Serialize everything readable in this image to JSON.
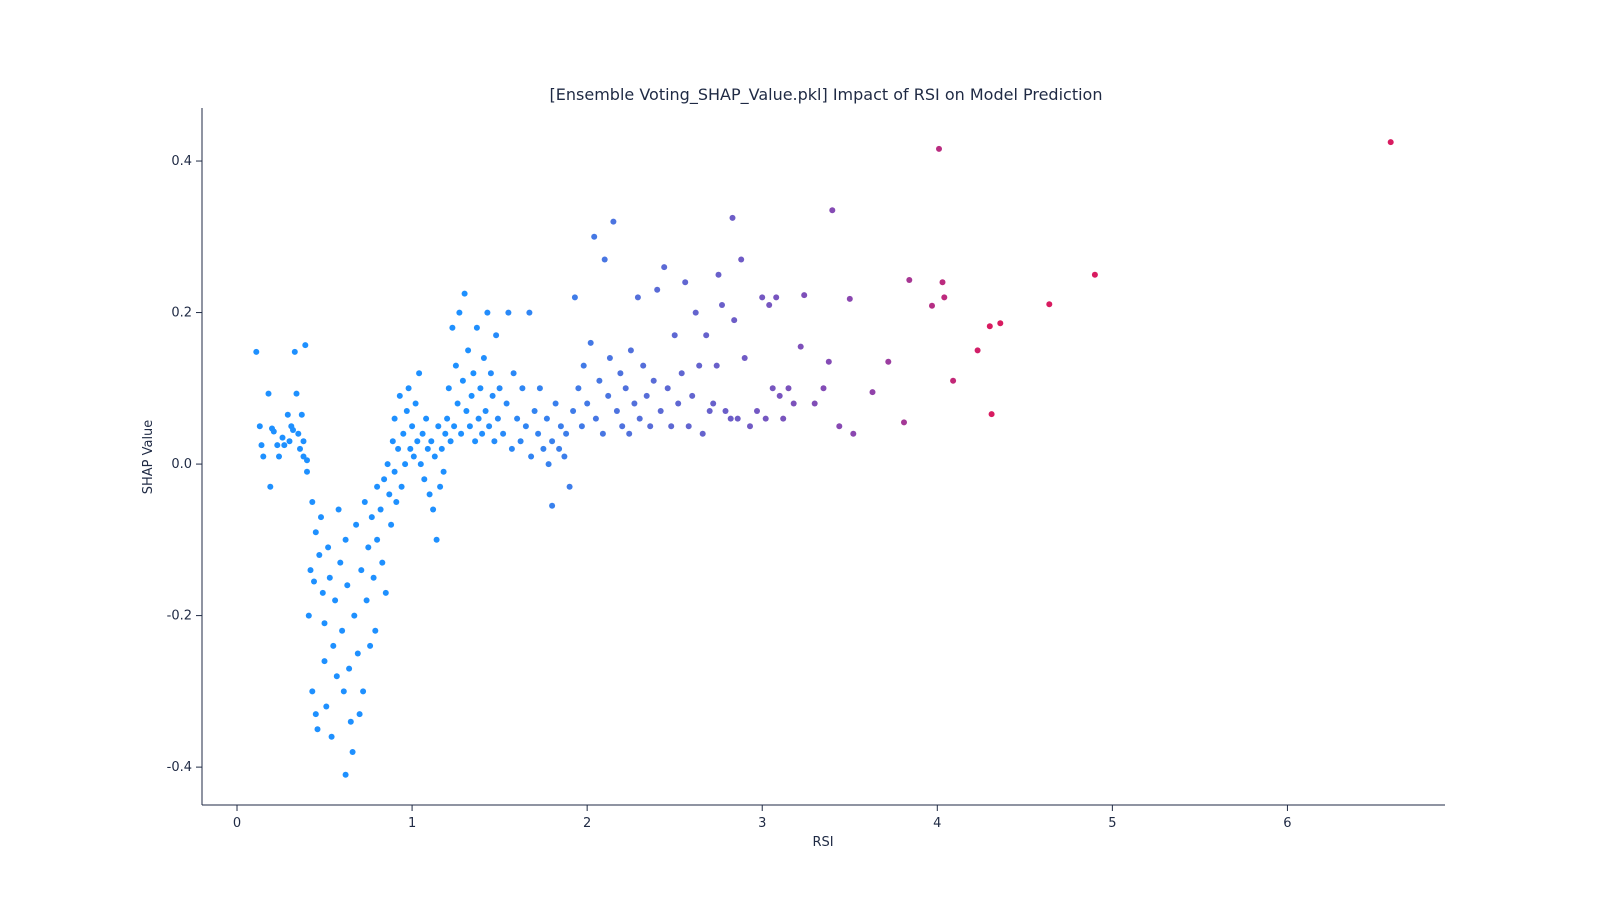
{
  "chart_data": {
    "type": "scatter",
    "title": "[Ensemble Voting_SHAP_Value.pkl] Impact of RSI on Model Prediction",
    "xlabel": "RSI",
    "ylabel": "SHAP Value",
    "xlim": [
      -0.2,
      6.9
    ],
    "ylim": [
      -0.45,
      0.47
    ],
    "xticks": [
      "0",
      "1",
      "2",
      "3",
      "4",
      "5",
      "6"
    ],
    "yticks": [
      "-0.4",
      "-0.2",
      "0.0",
      "0.2",
      "0.4"
    ],
    "grid": false,
    "color_scale": [
      "#1e90ff",
      "#5a6bd6",
      "#8e44ad",
      "#d81b60"
    ],
    "points": [
      [
        0.11,
        0.148
      ],
      [
        0.13,
        0.05
      ],
      [
        0.14,
        0.025
      ],
      [
        0.15,
        0.01
      ],
      [
        0.18,
        0.093
      ],
      [
        0.19,
        -0.03
      ],
      [
        0.2,
        0.047
      ],
      [
        0.21,
        0.043
      ],
      [
        0.23,
        0.025
      ],
      [
        0.24,
        0.01
      ],
      [
        0.26,
        0.035
      ],
      [
        0.27,
        0.025
      ],
      [
        0.29,
        0.065
      ],
      [
        0.3,
        0.03
      ],
      [
        0.31,
        0.05
      ],
      [
        0.32,
        0.045
      ],
      [
        0.33,
        0.148
      ],
      [
        0.34,
        0.093
      ],
      [
        0.35,
        0.04
      ],
      [
        0.36,
        0.02
      ],
      [
        0.37,
        0.065
      ],
      [
        0.38,
        0.03
      ],
      [
        0.38,
        0.01
      ],
      [
        0.39,
        0.157
      ],
      [
        0.4,
        -0.01
      ],
      [
        0.4,
        0.005
      ],
      [
        0.41,
        -0.2
      ],
      [
        0.42,
        -0.14
      ],
      [
        0.43,
        -0.05
      ],
      [
        0.43,
        -0.3
      ],
      [
        0.44,
        -0.155
      ],
      [
        0.45,
        -0.33
      ],
      [
        0.45,
        -0.09
      ],
      [
        0.46,
        -0.35
      ],
      [
        0.47,
        -0.12
      ],
      [
        0.48,
        -0.07
      ],
      [
        0.49,
        -0.17
      ],
      [
        0.5,
        -0.26
      ],
      [
        0.5,
        -0.21
      ],
      [
        0.51,
        -0.32
      ],
      [
        0.52,
        -0.11
      ],
      [
        0.53,
        -0.15
      ],
      [
        0.54,
        -0.36
      ],
      [
        0.55,
        -0.24
      ],
      [
        0.56,
        -0.18
      ],
      [
        0.57,
        -0.28
      ],
      [
        0.58,
        -0.06
      ],
      [
        0.59,
        -0.13
      ],
      [
        0.6,
        -0.22
      ],
      [
        0.61,
        -0.3
      ],
      [
        0.62,
        -0.41
      ],
      [
        0.62,
        -0.1
      ],
      [
        0.63,
        -0.16
      ],
      [
        0.64,
        -0.27
      ],
      [
        0.65,
        -0.34
      ],
      [
        0.66,
        -0.38
      ],
      [
        0.67,
        -0.2
      ],
      [
        0.68,
        -0.08
      ],
      [
        0.69,
        -0.25
      ],
      [
        0.7,
        -0.33
      ],
      [
        0.71,
        -0.14
      ],
      [
        0.72,
        -0.3
      ],
      [
        0.73,
        -0.05
      ],
      [
        0.74,
        -0.18
      ],
      [
        0.75,
        -0.11
      ],
      [
        0.76,
        -0.24
      ],
      [
        0.77,
        -0.07
      ],
      [
        0.78,
        -0.15
      ],
      [
        0.79,
        -0.22
      ],
      [
        0.8,
        -0.03
      ],
      [
        0.8,
        -0.1
      ],
      [
        0.82,
        -0.06
      ],
      [
        0.83,
        -0.13
      ],
      [
        0.84,
        -0.02
      ],
      [
        0.85,
        -0.17
      ],
      [
        0.86,
        0.0
      ],
      [
        0.87,
        -0.04
      ],
      [
        0.88,
        -0.08
      ],
      [
        0.89,
        0.03
      ],
      [
        0.9,
        -0.01
      ],
      [
        0.9,
        0.06
      ],
      [
        0.91,
        -0.05
      ],
      [
        0.92,
        0.02
      ],
      [
        0.93,
        0.09
      ],
      [
        0.94,
        -0.03
      ],
      [
        0.95,
        0.04
      ],
      [
        0.96,
        0.0
      ],
      [
        0.97,
        0.07
      ],
      [
        0.98,
        0.1
      ],
      [
        0.99,
        0.02
      ],
      [
        1.0,
        0.05
      ],
      [
        1.01,
        0.01
      ],
      [
        1.02,
        0.08
      ],
      [
        1.03,
        0.03
      ],
      [
        1.04,
        0.12
      ],
      [
        1.05,
        0.0
      ],
      [
        1.06,
        0.04
      ],
      [
        1.07,
        -0.02
      ],
      [
        1.08,
        0.06
      ],
      [
        1.09,
        0.02
      ],
      [
        1.1,
        -0.04
      ],
      [
        1.11,
        0.03
      ],
      [
        1.12,
        -0.06
      ],
      [
        1.13,
        0.01
      ],
      [
        1.14,
        -0.1
      ],
      [
        1.15,
        0.05
      ],
      [
        1.16,
        -0.03
      ],
      [
        1.17,
        0.02
      ],
      [
        1.18,
        -0.01
      ],
      [
        1.19,
        0.04
      ],
      [
        1.2,
        0.06
      ],
      [
        1.21,
        0.1
      ],
      [
        1.22,
        0.03
      ],
      [
        1.23,
        0.18
      ],
      [
        1.24,
        0.05
      ],
      [
        1.25,
        0.13
      ],
      [
        1.26,
        0.08
      ],
      [
        1.27,
        0.2
      ],
      [
        1.28,
        0.04
      ],
      [
        1.29,
        0.11
      ],
      [
        1.3,
        0.225
      ],
      [
        1.31,
        0.07
      ],
      [
        1.32,
        0.15
      ],
      [
        1.33,
        0.05
      ],
      [
        1.34,
        0.09
      ],
      [
        1.35,
        0.12
      ],
      [
        1.36,
        0.03
      ],
      [
        1.37,
        0.18
      ],
      [
        1.38,
        0.06
      ],
      [
        1.39,
        0.1
      ],
      [
        1.4,
        0.04
      ],
      [
        1.41,
        0.14
      ],
      [
        1.42,
        0.07
      ],
      [
        1.43,
        0.2
      ],
      [
        1.44,
        0.05
      ],
      [
        1.45,
        0.12
      ],
      [
        1.46,
        0.09
      ],
      [
        1.47,
        0.03
      ],
      [
        1.48,
        0.17
      ],
      [
        1.49,
        0.06
      ],
      [
        1.5,
        0.1
      ],
      [
        1.52,
        0.04
      ],
      [
        1.54,
        0.08
      ],
      [
        1.55,
        0.2
      ],
      [
        1.57,
        0.02
      ],
      [
        1.58,
        0.12
      ],
      [
        1.6,
        0.06
      ],
      [
        1.62,
        0.03
      ],
      [
        1.63,
        0.1
      ],
      [
        1.65,
        0.05
      ],
      [
        1.67,
        0.2
      ],
      [
        1.68,
        0.01
      ],
      [
        1.7,
        0.07
      ],
      [
        1.72,
        0.04
      ],
      [
        1.73,
        0.1
      ],
      [
        1.75,
        0.02
      ],
      [
        1.77,
        0.06
      ],
      [
        1.78,
        0.0
      ],
      [
        1.8,
        -0.055
      ],
      [
        1.8,
        0.03
      ],
      [
        1.82,
        0.08
      ],
      [
        1.84,
        0.02
      ],
      [
        1.85,
        0.05
      ],
      [
        1.87,
        0.01
      ],
      [
        1.88,
        0.04
      ],
      [
        1.9,
        -0.03
      ],
      [
        1.92,
        0.07
      ],
      [
        1.93,
        0.22
      ],
      [
        1.95,
        0.1
      ],
      [
        1.97,
        0.05
      ],
      [
        1.98,
        0.13
      ],
      [
        2.0,
        0.08
      ],
      [
        2.02,
        0.16
      ],
      [
        2.04,
        0.3
      ],
      [
        2.05,
        0.06
      ],
      [
        2.07,
        0.11
      ],
      [
        2.09,
        0.04
      ],
      [
        2.1,
        0.27
      ],
      [
        2.12,
        0.09
      ],
      [
        2.13,
        0.14
      ],
      [
        2.15,
        0.32
      ],
      [
        2.17,
        0.07
      ],
      [
        2.19,
        0.12
      ],
      [
        2.2,
        0.05
      ],
      [
        2.22,
        0.1
      ],
      [
        2.24,
        0.04
      ],
      [
        2.25,
        0.15
      ],
      [
        2.27,
        0.08
      ],
      [
        2.29,
        0.22
      ],
      [
        2.3,
        0.06
      ],
      [
        2.32,
        0.13
      ],
      [
        2.34,
        0.09
      ],
      [
        2.36,
        0.05
      ],
      [
        2.38,
        0.11
      ],
      [
        2.4,
        0.23
      ],
      [
        2.42,
        0.07
      ],
      [
        2.44,
        0.26
      ],
      [
        2.46,
        0.1
      ],
      [
        2.48,
        0.05
      ],
      [
        2.5,
        0.17
      ],
      [
        2.52,
        0.08
      ],
      [
        2.54,
        0.12
      ],
      [
        2.56,
        0.24
      ],
      [
        2.58,
        0.05
      ],
      [
        2.6,
        0.09
      ],
      [
        2.62,
        0.2
      ],
      [
        2.64,
        0.13
      ],
      [
        2.66,
        0.04
      ],
      [
        2.68,
        0.17
      ],
      [
        2.7,
        0.07
      ],
      [
        2.72,
        0.08
      ],
      [
        2.74,
        0.13
      ],
      [
        2.75,
        0.25
      ],
      [
        2.77,
        0.21
      ],
      [
        2.79,
        0.07
      ],
      [
        2.82,
        0.06
      ],
      [
        2.83,
        0.325
      ],
      [
        2.84,
        0.19
      ],
      [
        2.86,
        0.06
      ],
      [
        2.88,
        0.27
      ],
      [
        2.9,
        0.14
      ],
      [
        2.93,
        0.05
      ],
      [
        2.97,
        0.07
      ],
      [
        3.0,
        0.22
      ],
      [
        3.02,
        0.06
      ],
      [
        3.04,
        0.21
      ],
      [
        3.06,
        0.1
      ],
      [
        3.08,
        0.22
      ],
      [
        3.1,
        0.09
      ],
      [
        3.12,
        0.06
      ],
      [
        3.15,
        0.1
      ],
      [
        3.18,
        0.08
      ],
      [
        3.22,
        0.155
      ],
      [
        3.24,
        0.223
      ],
      [
        3.3,
        0.08
      ],
      [
        3.35,
        0.1
      ],
      [
        3.38,
        0.135
      ],
      [
        3.4,
        0.335
      ],
      [
        3.44,
        0.05
      ],
      [
        3.5,
        0.218
      ],
      [
        3.52,
        0.04
      ],
      [
        3.63,
        0.095
      ],
      [
        3.72,
        0.135
      ],
      [
        3.81,
        0.055
      ],
      [
        3.84,
        0.243
      ],
      [
        3.97,
        0.209
      ],
      [
        4.01,
        0.416
      ],
      [
        4.03,
        0.24
      ],
      [
        4.04,
        0.22
      ],
      [
        4.09,
        0.11
      ],
      [
        4.23,
        0.15
      ],
      [
        4.3,
        0.182
      ],
      [
        4.31,
        0.066
      ],
      [
        4.36,
        0.186
      ],
      [
        4.64,
        0.211
      ],
      [
        4.9,
        0.25
      ],
      [
        6.59,
        0.425
      ]
    ]
  }
}
